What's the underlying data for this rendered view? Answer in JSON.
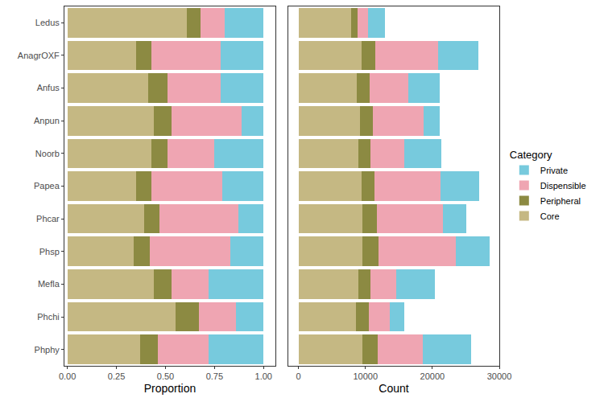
{
  "chart_data": [
    {
      "type": "bar",
      "orientation": "horizontal",
      "stacked": true,
      "x_label": "Proportion",
      "categories": [
        "Ledus",
        "AnagrOXF",
        "Anfus",
        "Anpun",
        "Noorb",
        "Papea",
        "Phcar",
        "Phsp",
        "Mefla",
        "Phchi",
        "Phphy"
      ],
      "series": [
        {
          "name": "Core",
          "color": "#C5B883",
          "values": [
            0.61,
            0.35,
            0.41,
            0.44,
            0.43,
            0.35,
            0.39,
            0.34,
            0.44,
            0.55,
            0.37
          ]
        },
        {
          "name": "Peripheral",
          "color": "#8C8A42",
          "values": [
            0.07,
            0.08,
            0.1,
            0.09,
            0.08,
            0.08,
            0.08,
            0.08,
            0.09,
            0.12,
            0.09
          ]
        },
        {
          "name": "Dispensible",
          "color": "#EFA5B2",
          "values": [
            0.12,
            0.35,
            0.27,
            0.36,
            0.24,
            0.36,
            0.4,
            0.41,
            0.19,
            0.19,
            0.26
          ]
        },
        {
          "name": "Private",
          "color": "#77CADD",
          "values": [
            0.2,
            0.22,
            0.22,
            0.11,
            0.25,
            0.21,
            0.13,
            0.17,
            0.28,
            0.14,
            0.28
          ]
        }
      ],
      "xlim": [
        -0.015,
        1.06
      ],
      "xticks": [
        {
          "value": 0,
          "label": "0.00"
        },
        {
          "value": 0.25,
          "label": "0.25"
        },
        {
          "value": 0.5,
          "label": "0.50"
        },
        {
          "value": 0.75,
          "label": "0.75"
        },
        {
          "value": 1,
          "label": "1.00"
        }
      ],
      "legend": "right",
      "legend_title": "Category",
      "grid": false
    },
    {
      "type": "bar",
      "orientation": "horizontal",
      "stacked": true,
      "x_label": "Count",
      "categories": [
        "Ledus",
        "AnagrOXF",
        "Anfus",
        "Anpun",
        "Noorb",
        "Papea",
        "Phcar",
        "Phsp",
        "Mefla",
        "Phchi",
        "Phphy"
      ],
      "series": [
        {
          "name": "Core",
          "color": "#C5B883",
          "values": [
            7900,
            9400,
            8700,
            9200,
            9000,
            9400,
            9600,
            9500,
            9000,
            8600,
            9500
          ]
        },
        {
          "name": "Peripheral",
          "color": "#8C8A42",
          "values": [
            900,
            2100,
            1900,
            1900,
            1700,
            2000,
            2100,
            2400,
            1700,
            1900,
            2300
          ]
        },
        {
          "name": "Dispensible",
          "color": "#EFA5B2",
          "values": [
            1600,
            9400,
            5800,
            7600,
            5100,
            9800,
            9900,
            11600,
            3900,
            3200,
            6800
          ]
        },
        {
          "name": "Private",
          "color": "#77CADD",
          "values": [
            2500,
            6000,
            4700,
            2400,
            5500,
            5800,
            3500,
            5000,
            5800,
            2100,
            7200
          ]
        }
      ],
      "xlim": [
        -1500,
        30000
      ],
      "xticks": [
        0,
        10000,
        20000,
        30000
      ],
      "tick_labels": "x",
      "grid": false
    }
  ]
}
